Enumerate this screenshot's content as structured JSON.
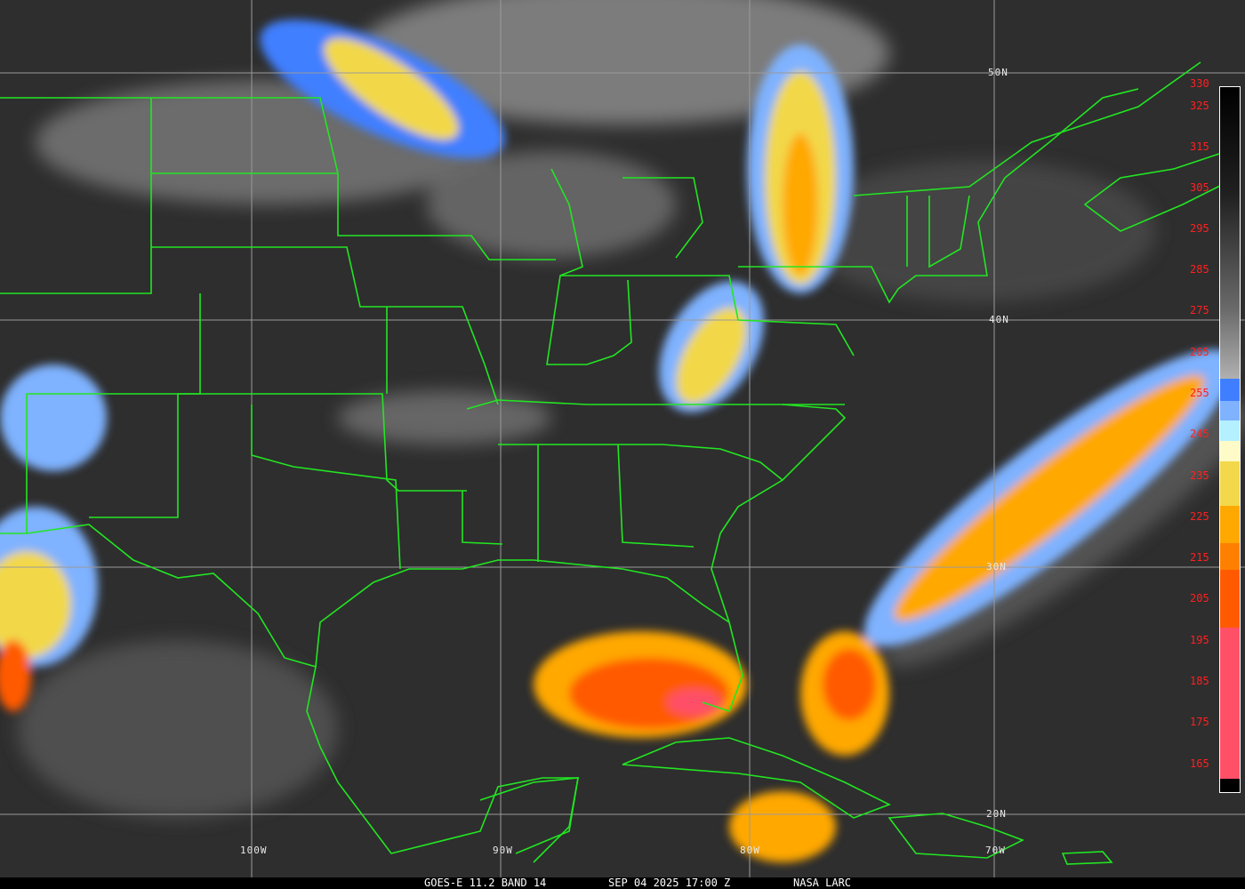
{
  "caption": {
    "satellite": "GOES-E 11.2 BAND 14",
    "datetime": "SEP 04 2025 17:00 Z",
    "source": "NASA LARC"
  },
  "grid_labels": {
    "latitudes": [
      "50N",
      "40N",
      "30N",
      "20N"
    ],
    "longitudes": [
      "100W",
      "90W",
      "80W",
      "70W"
    ]
  },
  "colorbar": {
    "unit_ticks": [
      "330",
      "325",
      "315",
      "305",
      "295",
      "285",
      "275",
      "265",
      "255",
      "245",
      "235",
      "225",
      "215",
      "205",
      "195",
      "185",
      "175",
      "165"
    ],
    "bands": [
      {
        "color": "#3f7fff"
      },
      {
        "color": "#7fb2ff"
      },
      {
        "color": "#b4f0ff"
      },
      {
        "color": "#fffbc8"
      },
      {
        "color": "#f2d84a"
      },
      {
        "color": "#ffa800"
      },
      {
        "color": "#ff7f00"
      },
      {
        "color": "#ff5a00"
      },
      {
        "color": "#ff5068"
      }
    ]
  },
  "colors": {
    "borders": "#22e622",
    "grid": "#9a9a9a",
    "tick_text": "#ff2020"
  }
}
